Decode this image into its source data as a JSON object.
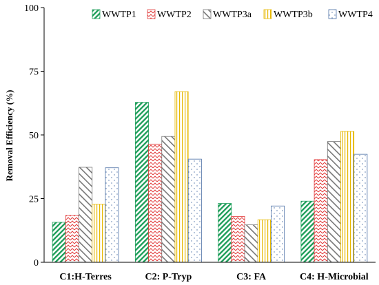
{
  "chart_data": {
    "type": "bar",
    "categories": [
      "C1:H-Terres",
      "C2: P-Tryp",
      "C3: FA",
      "C4: H-Microbial"
    ],
    "series": [
      {
        "name": "WWTP1",
        "values": [
          15.7,
          62.8,
          23.1,
          24.0
        ],
        "color": "#1e9e5a",
        "pattern": "diag-dense"
      },
      {
        "name": "WWTP2",
        "values": [
          18.4,
          46.4,
          18.0,
          40.3
        ],
        "color": "#e23b3b",
        "pattern": "zigzag"
      },
      {
        "name": "WWTP3a",
        "values": [
          37.3,
          49.4,
          14.7,
          47.4
        ],
        "color": "#777777",
        "pattern": "diag-wide"
      },
      {
        "name": "WWTP3b",
        "values": [
          22.8,
          67.0,
          16.7,
          51.4
        ],
        "color": "#e6b800",
        "pattern": "vertical"
      },
      {
        "name": "WWTP4",
        "values": [
          37.1,
          40.5,
          22.1,
          42.4
        ],
        "color": "#4a6fa5",
        "pattern": "dots"
      }
    ],
    "ylabel": "Removal Efficiency (%)",
    "xlabel": "",
    "ylim": [
      0,
      100
    ],
    "yticks": [
      0,
      25,
      50,
      75,
      100
    ],
    "grid": false,
    "legend": "top"
  }
}
